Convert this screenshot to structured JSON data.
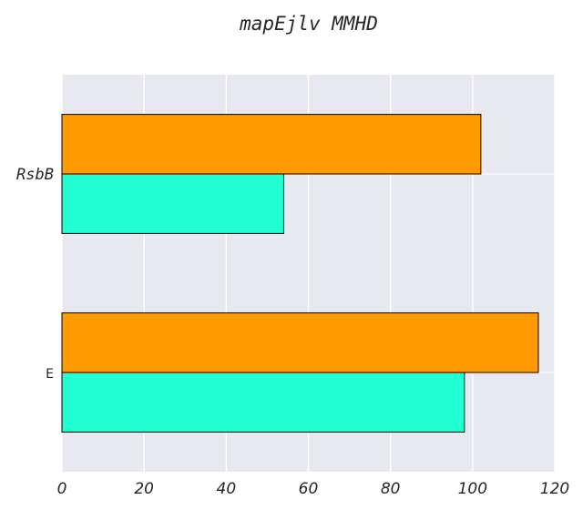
{
  "chart_data": {
    "type": "bar",
    "orientation": "horizontal",
    "title": "mapEjlv MMHD",
    "xlabel": "",
    "ylabel": "",
    "categories": [
      "RsbB",
      "E"
    ],
    "series": [
      {
        "values": [
          54,
          98
        ],
        "color": "#22ffd3"
      },
      {
        "values": [
          102,
          116
        ],
        "color": "#ff9a00"
      }
    ],
    "xlim": [
      0,
      120
    ],
    "xticks": [
      "0",
      "20",
      "40",
      "60",
      "80",
      "100",
      "120"
    ],
    "grid": true,
    "background_color": "#e8e8f0",
    "legend": "none"
  }
}
